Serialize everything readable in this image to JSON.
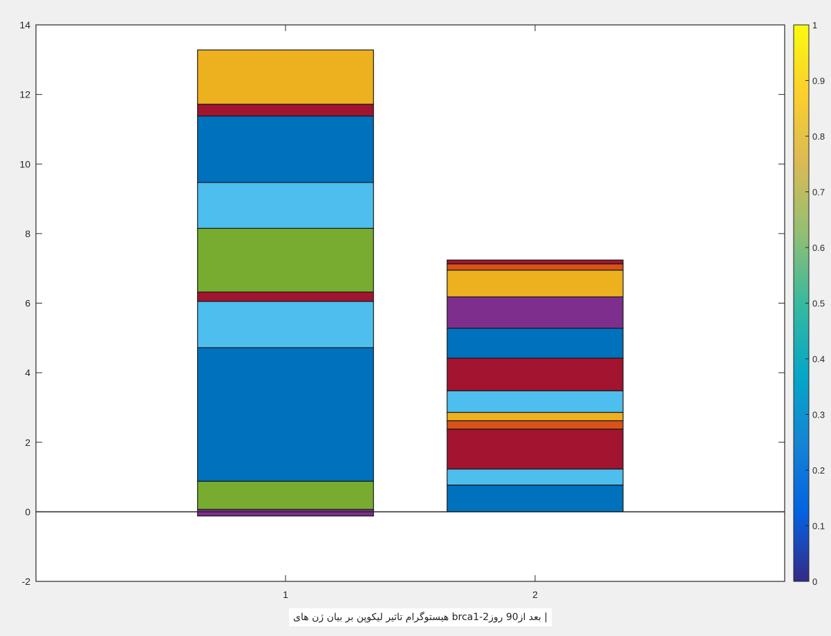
{
  "chart_data": {
    "type": "bar",
    "stacked": true,
    "categories": [
      "1",
      "2"
    ],
    "ylim": [
      -2,
      14
    ],
    "yticks": [
      "-2",
      "0",
      "2",
      "4",
      "6",
      "8",
      "10",
      "12",
      "14"
    ],
    "grid": false,
    "bars": [
      {
        "category": "1",
        "segments": [
          {
            "from": -0.12,
            "to": 0.07,
            "color": "#7e2f8e"
          },
          {
            "from": 0.07,
            "to": 0.88,
            "color": "#77ac30"
          },
          {
            "from": 0.88,
            "to": 4.72,
            "color": "#0072bd"
          },
          {
            "from": 4.72,
            "to": 6.05,
            "color": "#4dbeee"
          },
          {
            "from": 6.05,
            "to": 6.32,
            "color": "#a2142f"
          },
          {
            "from": 6.32,
            "to": 8.15,
            "color": "#77ac30"
          },
          {
            "from": 8.15,
            "to": 9.47,
            "color": "#4dbeee"
          },
          {
            "from": 9.47,
            "to": 11.38,
            "color": "#0072bd"
          },
          {
            "from": 11.38,
            "to": 11.72,
            "color": "#a2142f"
          },
          {
            "from": 11.72,
            "to": 13.28,
            "color": "#edb120"
          }
        ]
      },
      {
        "category": "2",
        "segments": [
          {
            "from": 0.0,
            "to": 0.77,
            "color": "#0072bd"
          },
          {
            "from": 0.77,
            "to": 1.23,
            "color": "#4dbeee"
          },
          {
            "from": 1.23,
            "to": 2.38,
            "color": "#a2142f"
          },
          {
            "from": 2.38,
            "to": 2.62,
            "color": "#d95319"
          },
          {
            "from": 2.62,
            "to": 2.86,
            "color": "#edb120"
          },
          {
            "from": 2.86,
            "to": 3.48,
            "color": "#4dbeee"
          },
          {
            "from": 3.48,
            "to": 4.42,
            "color": "#a2142f"
          },
          {
            "from": 4.42,
            "to": 5.28,
            "color": "#0072bd"
          },
          {
            "from": 5.28,
            "to": 6.18,
            "color": "#7e2f8e"
          },
          {
            "from": 6.18,
            "to": 6.95,
            "color": "#edb120"
          },
          {
            "from": 6.95,
            "to": 7.13,
            "color": "#d95319"
          },
          {
            "from": 7.13,
            "to": 7.24,
            "color": "#a2142f"
          }
        ]
      }
    ],
    "colorbar": {
      "range": [
        0,
        1
      ],
      "ticks": [
        "0",
        "0.1",
        "0.2",
        "0.3",
        "0.4",
        "0.5",
        "0.6",
        "0.7",
        "0.8",
        "0.9",
        "1"
      ],
      "colormap": "parula",
      "colors": [
        "#352a87",
        "#0363e1",
        "#1485d4",
        "#06a7c6",
        "#38b99e",
        "#92bf73",
        "#d9ba56",
        "#fcce2e",
        "#f9fb0e"
      ]
    },
    "xlabel": "| بعد از90 روز2-brca1 هیستوگرام تاثیر لیکوپن بر بیان ژن های"
  }
}
